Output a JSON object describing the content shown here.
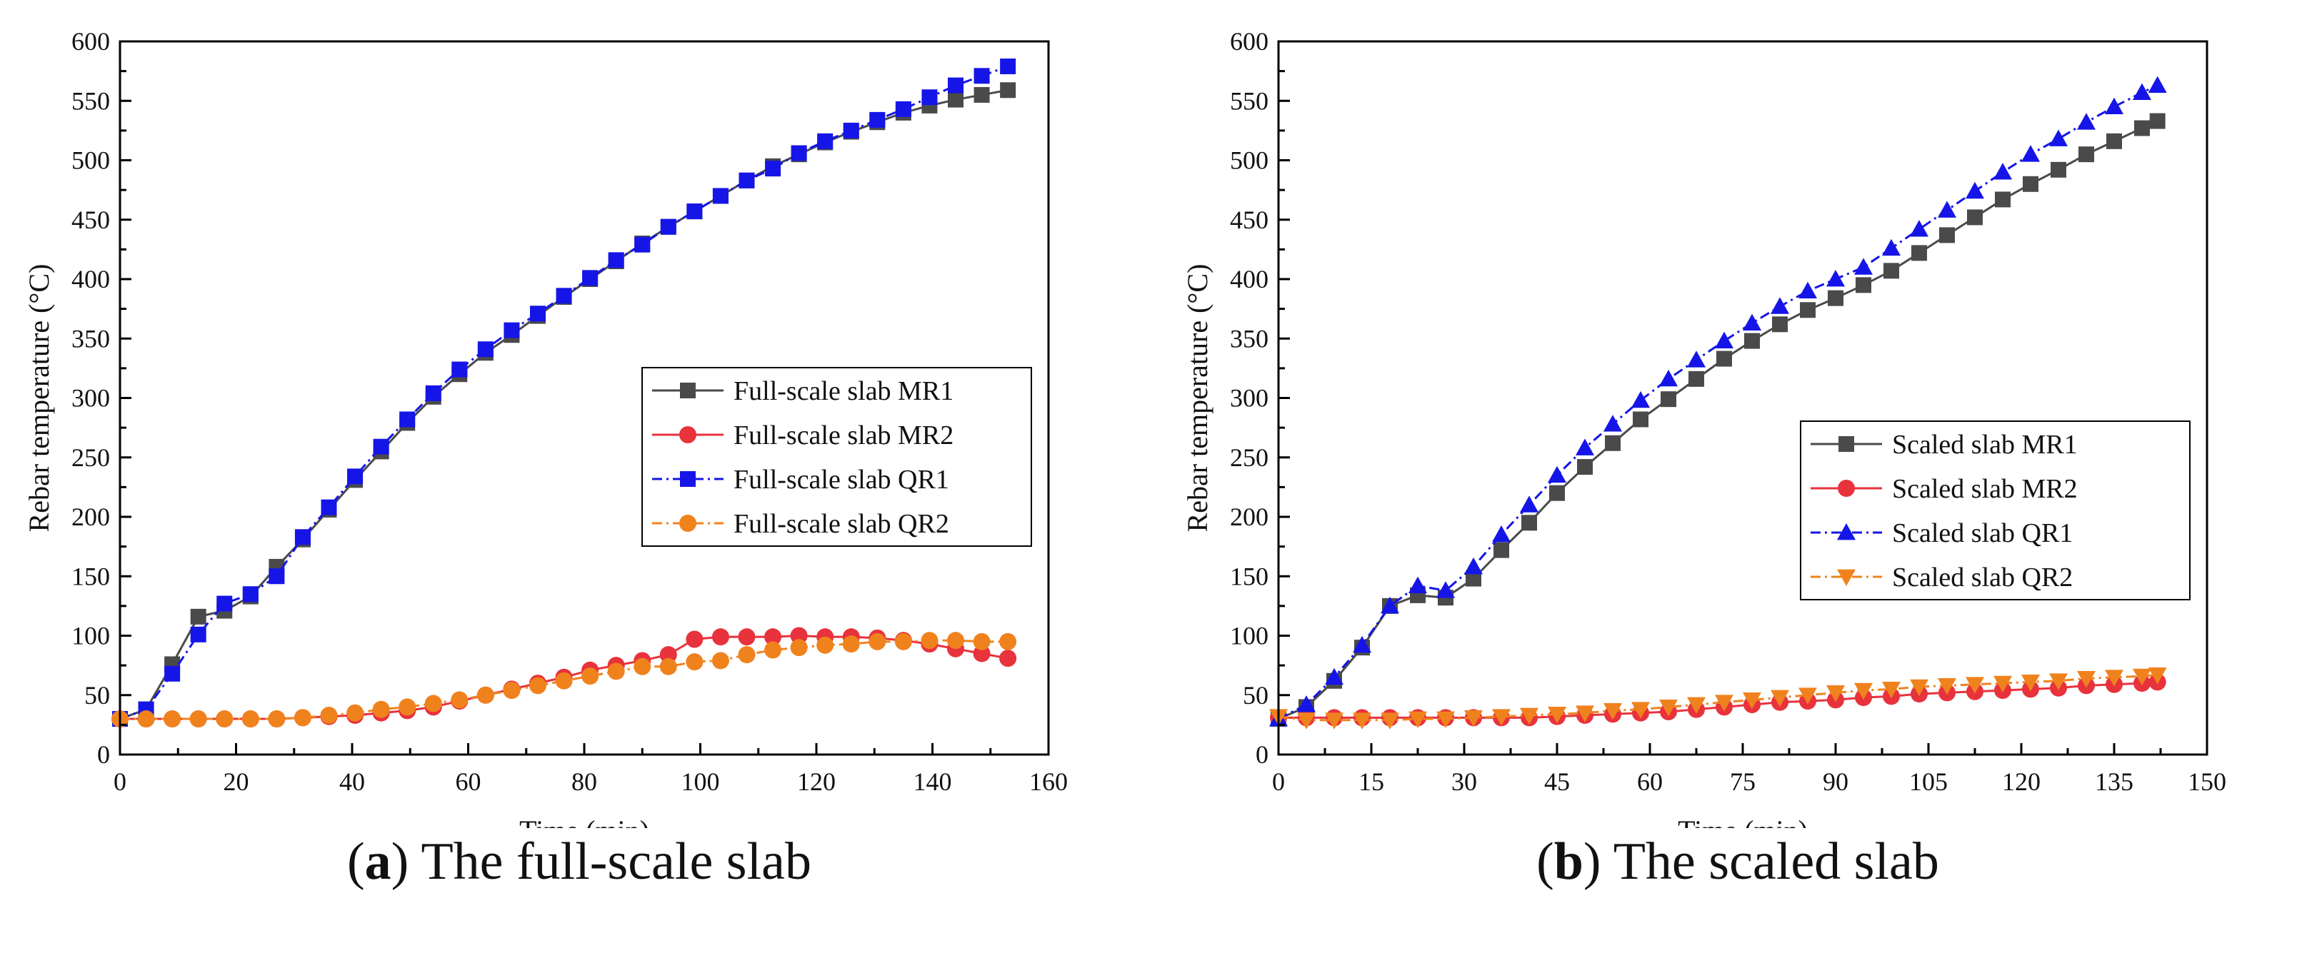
{
  "chart_data": [
    {
      "type": "line",
      "panel_letter": "a",
      "caption": "The full-scale slab",
      "xlabel": "Time (min)",
      "ylabel": "Rebar temperature (°C)",
      "xlim": [
        0,
        160
      ],
      "ylim": [
        0,
        600
      ],
      "xticks": [
        0,
        20,
        40,
        60,
        80,
        100,
        120,
        140,
        160
      ],
      "yticks": [
        0,
        50,
        100,
        150,
        200,
        250,
        300,
        350,
        400,
        450,
        500,
        550,
        600
      ],
      "legend_position": "center-right",
      "series": [
        {
          "name": "Full-scale slab MR1",
          "color": "#4a4a4a",
          "marker": "square",
          "dash": "solid",
          "x": [
            0,
            4.5,
            9,
            13.5,
            18,
            22.5,
            27,
            31.5,
            36,
            40.5,
            45,
            49.5,
            54,
            58.5,
            63,
            67.5,
            72,
            76.5,
            81,
            85.5,
            90,
            94.5,
            99,
            103.5,
            108,
            112.5,
            117,
            121.5,
            126,
            130.5,
            135,
            139.5,
            144,
            148.5,
            153
          ],
          "y": [
            30,
            38,
            76,
            116,
            121,
            133,
            158,
            181,
            206,
            231,
            255,
            279,
            301,
            320,
            338,
            353,
            369,
            385,
            400,
            415,
            430,
            444,
            457,
            470,
            483,
            495,
            505,
            515,
            524,
            532,
            540,
            546,
            551,
            555,
            559
          ]
        },
        {
          "name": "Full-scale slab MR2",
          "color": "#e8323c",
          "marker": "circle",
          "dash": "solid",
          "x": [
            0,
            4.5,
            9,
            13.5,
            18,
            22.5,
            27,
            31.5,
            36,
            40.5,
            45,
            49.5,
            54,
            58.5,
            63,
            67.5,
            72,
            76.5,
            81,
            85.5,
            90,
            94.5,
            99,
            103.5,
            108,
            112.5,
            117,
            121.5,
            126,
            130.5,
            135,
            139.5,
            144,
            148.5,
            153
          ],
          "y": [
            30,
            30,
            30,
            30,
            30,
            30,
            30,
            31,
            32,
            33,
            35,
            37,
            40,
            45,
            50,
            55,
            60,
            65,
            71,
            75,
            79,
            84,
            97,
            99,
            99,
            99,
            100,
            99,
            99,
            98,
            96,
            93,
            89,
            85,
            81
          ]
        },
        {
          "name": "Full-scale slab QR1",
          "color": "#1515e8",
          "marker": "square",
          "dash": "dashdot",
          "x": [
            0,
            4.5,
            9,
            13.5,
            18,
            22.5,
            27,
            31.5,
            36,
            40.5,
            45,
            49.5,
            54,
            58.5,
            63,
            67.5,
            72,
            76.5,
            81,
            85.5,
            90,
            94.5,
            99,
            103.5,
            108,
            112.5,
            117,
            121.5,
            126,
            130.5,
            135,
            139.5,
            144,
            148.5,
            153
          ],
          "y": [
            30,
            38,
            68,
            101,
            127,
            135,
            150,
            183,
            208,
            234,
            259,
            282,
            304,
            324,
            341,
            357,
            371,
            386,
            401,
            416,
            429,
            444,
            457,
            470,
            483,
            493,
            506,
            516,
            525,
            534,
            543,
            553,
            563,
            571,
            579
          ]
        },
        {
          "name": "Full-scale slab QR2",
          "color": "#f0821e",
          "marker": "circle",
          "dash": "dashdot",
          "x": [
            0,
            4.5,
            9,
            13.5,
            18,
            22.5,
            27,
            31.5,
            36,
            40.5,
            45,
            49.5,
            54,
            58.5,
            63,
            67.5,
            72,
            76.5,
            81,
            85.5,
            90,
            94.5,
            99,
            103.5,
            108,
            112.5,
            117,
            121.5,
            126,
            130.5,
            135,
            139.5,
            144,
            148.5,
            153
          ],
          "y": [
            30,
            30,
            30,
            30,
            30,
            30,
            30,
            31,
            33,
            35,
            38,
            40,
            43,
            46,
            50,
            54,
            58,
            62,
            66,
            70,
            74,
            74,
            78,
            79,
            84,
            88,
            90,
            92,
            93,
            95,
            95,
            96,
            96,
            95,
            95
          ]
        }
      ]
    },
    {
      "type": "line",
      "panel_letter": "b",
      "caption": "The scaled slab",
      "xlabel": "Time (min)",
      "ylabel": "Rebar temperature (°C)",
      "xlim": [
        0,
        150
      ],
      "ylim": [
        0,
        600
      ],
      "xticks": [
        0,
        15,
        30,
        45,
        60,
        75,
        90,
        105,
        120,
        135,
        150
      ],
      "yticks": [
        0,
        50,
        100,
        150,
        200,
        250,
        300,
        350,
        400,
        450,
        500,
        550,
        600
      ],
      "legend_position": "center-right",
      "series": [
        {
          "name": "Scaled slab MR1",
          "color": "#4a4a4a",
          "marker": "square",
          "dash": "solid",
          "x": [
            0,
            4.5,
            9,
            13.5,
            18,
            22.5,
            27,
            31.5,
            36,
            40.5,
            45,
            49.5,
            54,
            58.5,
            63,
            67.5,
            72,
            76.5,
            81,
            85.5,
            90,
            94.5,
            99,
            103.5,
            108,
            112.5,
            117,
            121.5,
            126,
            130.5,
            135,
            139.5,
            142
          ],
          "y": [
            30,
            40,
            62,
            90,
            125,
            134,
            132,
            148,
            172,
            195,
            220,
            242,
            262,
            282,
            299,
            316,
            333,
            348,
            362,
            374,
            384,
            395,
            407,
            422,
            437,
            452,
            467,
            480,
            492,
            505,
            516,
            527,
            533
          ]
        },
        {
          "name": "Scaled slab MR2",
          "color": "#e8323c",
          "marker": "circle",
          "dash": "solid",
          "x": [
            0,
            4.5,
            9,
            13.5,
            18,
            22.5,
            27,
            31.5,
            36,
            40.5,
            45,
            49.5,
            54,
            58.5,
            63,
            67.5,
            72,
            76.5,
            81,
            85.5,
            90,
            94.5,
            99,
            103.5,
            108,
            112.5,
            117,
            121.5,
            126,
            130.5,
            135,
            139.5,
            142
          ],
          "y": [
            31,
            31,
            31,
            31,
            31,
            31,
            31,
            31,
            31,
            31,
            32,
            33,
            34,
            35,
            36,
            38,
            40,
            42,
            44,
            45,
            46,
            48,
            49,
            51,
            52,
            53,
            54,
            55,
            56,
            58,
            59,
            60,
            61
          ]
        },
        {
          "name": "Scaled slab QR1",
          "color": "#1515e8",
          "marker": "triangle-up",
          "dash": "dashdot",
          "x": [
            0,
            4.5,
            9,
            13.5,
            18,
            22.5,
            27,
            31.5,
            36,
            40.5,
            45,
            49.5,
            54,
            58.5,
            63,
            67.5,
            72,
            76.5,
            81,
            85.5,
            90,
            94.5,
            99,
            103.5,
            108,
            112.5,
            117,
            121.5,
            126,
            130.5,
            135,
            139.5,
            142
          ],
          "y": [
            30,
            42,
            65,
            92,
            125,
            142,
            138,
            158,
            185,
            210,
            235,
            258,
            278,
            298,
            316,
            332,
            348,
            363,
            377,
            390,
            400,
            410,
            426,
            442,
            458,
            474,
            490,
            505,
            518,
            532,
            545,
            557,
            563
          ]
        },
        {
          "name": "Scaled slab QR2",
          "color": "#f0821e",
          "marker": "triangle-down",
          "dash": "dashdot",
          "x": [
            0,
            4.5,
            9,
            13.5,
            18,
            22.5,
            27,
            31.5,
            36,
            40.5,
            45,
            49.5,
            54,
            58.5,
            63,
            67.5,
            72,
            76.5,
            81,
            85.5,
            90,
            94.5,
            99,
            103.5,
            108,
            112.5,
            117,
            121.5,
            126,
            130.5,
            135,
            139.5,
            142
          ],
          "y": [
            32,
            29,
            29,
            29,
            29,
            30,
            30,
            31,
            32,
            33,
            34,
            35,
            37,
            38,
            40,
            42,
            44,
            46,
            48,
            50,
            52,
            54,
            55,
            57,
            58,
            59,
            60,
            61,
            62,
            64,
            65,
            66,
            67
          ]
        }
      ]
    }
  ]
}
